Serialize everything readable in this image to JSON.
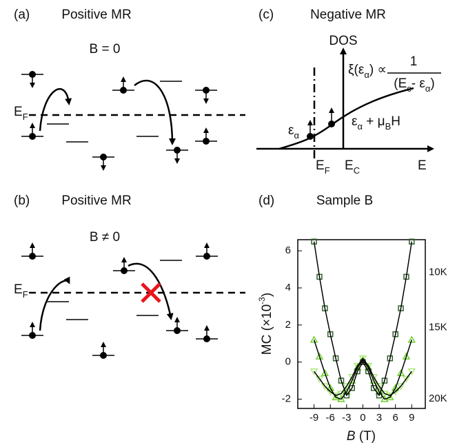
{
  "panels": {
    "a": {
      "label": "(a)",
      "title": "Positive MR",
      "field": "B = 0",
      "fermi": {
        "parts": [
          {
            "t": "E"
          },
          {
            "t": "F",
            "sub": true
          }
        ]
      }
    },
    "b": {
      "label": "(b)",
      "title": "Positive MR",
      "field": "B ≠ 0",
      "fermi": {
        "parts": [
          {
            "t": "E"
          },
          {
            "t": "F",
            "sub": true
          }
        ]
      }
    },
    "c": {
      "label": "(c)",
      "title": "Negative MR",
      "dos": "DOS",
      "formula": {
        "parts": [
          {
            "t": "ξ(ε"
          },
          {
            "t": "α",
            "sub": true
          },
          {
            "t": ") ∝"
          }
        ]
      },
      "numerator": "1",
      "denominator": {
        "parts": [
          {
            "t": "(E"
          },
          {
            "t": "c",
            "sub": true
          },
          {
            "t": "- ε"
          },
          {
            "t": "α",
            "sub": true
          },
          {
            "t": ")"
          }
        ]
      },
      "state1": {
        "parts": [
          {
            "t": "ε"
          },
          {
            "t": "α",
            "sub": true
          }
        ]
      },
      "state2": {
        "parts": [
          {
            "t": "ε"
          },
          {
            "t": "α",
            "sub": true
          },
          {
            "t": " + μ"
          },
          {
            "t": "B",
            "sub": true
          },
          {
            "t": "H"
          }
        ]
      },
      "ef": {
        "parts": [
          {
            "t": "E"
          },
          {
            "t": "F",
            "sub": true
          }
        ]
      },
      "ec": {
        "parts": [
          {
            "t": "E"
          },
          {
            "t": "C",
            "sub": true
          }
        ]
      },
      "e": "E"
    },
    "d": {
      "label": "(d)"
    }
  },
  "chart_data": {
    "type": "scatter",
    "title": "Sample B",
    "xlabel": {
      "parts": [
        {
          "t": "B",
          "italic": true
        },
        {
          "t": " (T)"
        }
      ]
    },
    "ylabel": {
      "parts": [
        {
          "t": "MC (×10"
        },
        {
          "t": "-3",
          "sup": true
        },
        {
          "t": ")"
        }
      ]
    },
    "x": [
      -9,
      -8,
      -7,
      -6,
      -5,
      -4,
      -3,
      -2,
      -1,
      0,
      1,
      2,
      3,
      4,
      5,
      6,
      7,
      8,
      9
    ],
    "series": [
      {
        "name": "10K",
        "color": "#2f5f2a",
        "marker": "square",
        "values": [
          6.5,
          4.6,
          2.9,
          1.5,
          0.2,
          -1.0,
          -1.8,
          -1.4,
          -0.5,
          0,
          -0.5,
          -1.4,
          -1.8,
          -1.0,
          0.2,
          1.5,
          2.9,
          4.6,
          6.5
        ]
      },
      {
        "name": "15K",
        "color": "#6fd12e",
        "marker": "triangle-up",
        "values": [
          1.2,
          0.3,
          -0.6,
          -1.4,
          -1.9,
          -2.0,
          -1.6,
          -1.0,
          -0.3,
          0.1,
          -0.3,
          -1.0,
          -1.6,
          -2.0,
          -1.9,
          -1.4,
          -0.6,
          0.3,
          1.2
        ]
      },
      {
        "name": "20K",
        "color": "#aee87a",
        "marker": "triangle-down",
        "values": [
          -0.5,
          -0.9,
          -1.3,
          -1.6,
          -1.8,
          -1.7,
          -1.3,
          -0.8,
          -0.2,
          0.2,
          -0.2,
          -0.8,
          -1.3,
          -1.7,
          -1.8,
          -1.6,
          -1.3,
          -0.9,
          -0.5
        ]
      }
    ],
    "fit_color": "#000000",
    "xlim": [
      -12,
      11.5
    ],
    "ylim": [
      -2.5,
      6.6
    ],
    "xticks": [
      -9,
      -6,
      -3,
      0,
      3,
      6,
      9
    ],
    "yticks": [
      -2,
      0,
      2,
      4,
      6
    ]
  }
}
